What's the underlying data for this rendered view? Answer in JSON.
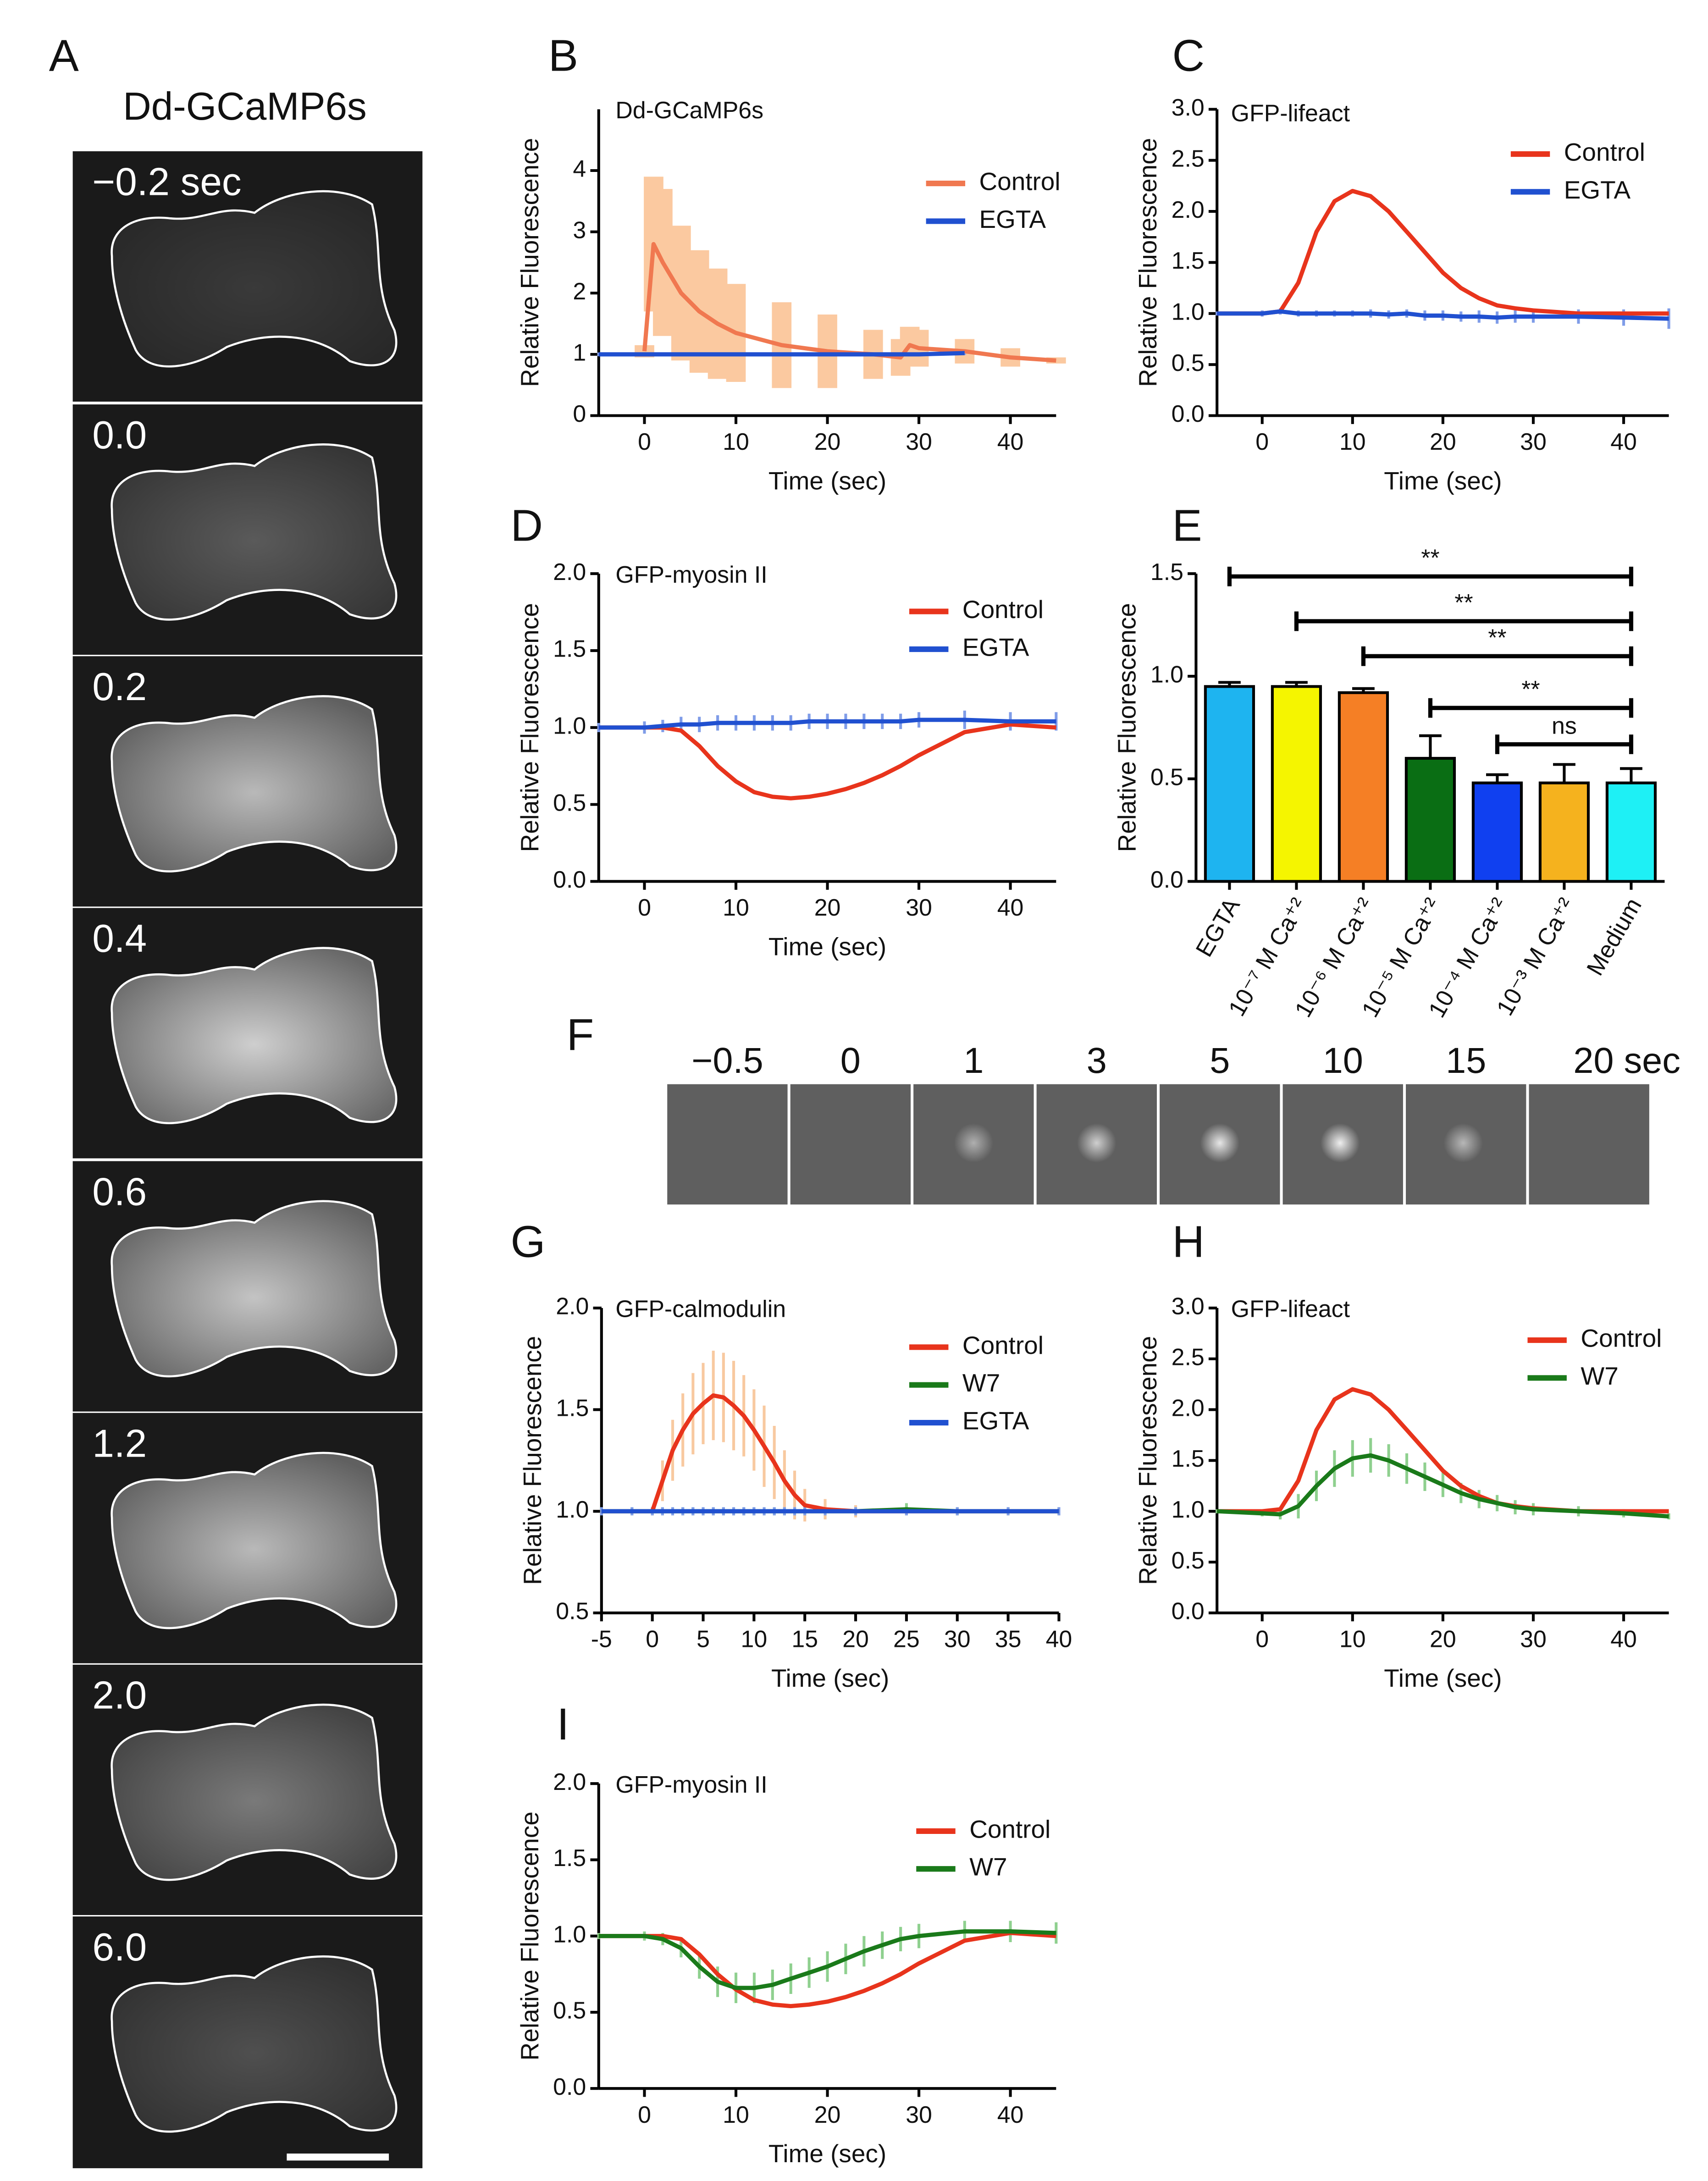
{
  "panel_a": {
    "label": "A",
    "title": "Dd-GCaMP6s",
    "frames": [
      "−0.2 sec",
      "0.0",
      "0.2",
      "0.4",
      "0.6",
      "1.2",
      "2.0",
      "6.0"
    ]
  },
  "panel_f": {
    "label": "F",
    "labels": [
      "−0.5",
      "0",
      "1",
      "3",
      "5",
      "10",
      "15",
      "20 sec"
    ]
  },
  "chart_data": [
    {
      "type": "line",
      "panel": "B",
      "title": "Dd-GCaMP6s",
      "x_label": "Time (sec)",
      "y_label": "Relative Fluorescence",
      "x": [
        -5,
        -1,
        0,
        1,
        2,
        4,
        6,
        8,
        10,
        15,
        20,
        25,
        28,
        29,
        30,
        35,
        40,
        45
      ],
      "series": [
        {
          "name": "Control",
          "color": "#f07850",
          "values": [
            null,
            null,
            1.05,
            2.8,
            2.5,
            2.0,
            1.7,
            1.5,
            1.35,
            1.15,
            1.05,
            1.0,
            0.95,
            1.15,
            1.1,
            1.05,
            0.95,
            0.9
          ],
          "errors": [
            null,
            null,
            0.1,
            1.1,
            1.2,
            1.1,
            1.0,
            0.9,
            0.8,
            0.7,
            0.6,
            0.4,
            0.3,
            0.3,
            0.3,
            0.2,
            0.15,
            0.05
          ],
          "error_color": "#fbc9a0"
        },
        {
          "name": "EGTA",
          "color": "#2050d0",
          "values": [
            1,
            1,
            1,
            1,
            1,
            1,
            1,
            1,
            1,
            1,
            1,
            1,
            1,
            1,
            1,
            1.02,
            null,
            null
          ],
          "errors": [
            0.03,
            0.03,
            0.03,
            0.03,
            0.03,
            0.03,
            0.03,
            0.03,
            0.03,
            0.03,
            0.03,
            0.03,
            0.03,
            0.03,
            0.03,
            0.03,
            null,
            null
          ],
          "error_color": "#8fa8ea"
        }
      ],
      "xlim": [
        -5,
        45
      ],
      "xticks": [
        0,
        10,
        20,
        30,
        40
      ],
      "ylim": [
        0,
        5
      ],
      "yticks": [
        0,
        1,
        2,
        3,
        4
      ]
    },
    {
      "type": "line",
      "panel": "C",
      "title": "GFP-lifeact",
      "x_label": "Time (sec)",
      "y_label": "Relative Fluorescence",
      "x": [
        -5,
        0,
        2,
        4,
        6,
        8,
        10,
        12,
        14,
        16,
        18,
        20,
        22,
        24,
        26,
        28,
        30,
        35,
        40,
        45
      ],
      "series": [
        {
          "name": "Control",
          "color": "#e8341c",
          "values": [
            1,
            1,
            1.02,
            1.3,
            1.8,
            2.1,
            2.2,
            2.15,
            2.0,
            1.8,
            1.6,
            1.4,
            1.25,
            1.15,
            1.08,
            1.05,
            1.03,
            1.0,
            1.0,
            1.0
          ]
        },
        {
          "name": "EGTA",
          "color": "#2050d0",
          "values": [
            1,
            1,
            1.02,
            1.0,
            1.0,
            1,
            1,
            1,
            0.99,
            1,
            0.98,
            0.98,
            0.97,
            0.97,
            0.96,
            0.97,
            0.97,
            0.97,
            0.96,
            0.95
          ],
          "errors": [
            0.02,
            0.03,
            0.03,
            0.03,
            0.03,
            0.03,
            0.03,
            0.04,
            0.04,
            0.04,
            0.05,
            0.05,
            0.05,
            0.06,
            0.06,
            0.06,
            0.06,
            0.07,
            0.08,
            0.1
          ],
          "error_color": "#7f9ce8"
        }
      ],
      "xlim": [
        -5,
        45
      ],
      "xticks": [
        0,
        10,
        20,
        30,
        40
      ],
      "ylim": [
        0,
        3
      ],
      "yticks": [
        {
          "value": 0,
          "label": "0.0"
        },
        0.5,
        {
          "value": 1,
          "label": "1.0"
        },
        1.5,
        {
          "value": 2,
          "label": "2.0"
        },
        2.5,
        {
          "value": 3,
          "label": "3.0"
        }
      ]
    },
    {
      "type": "line",
      "panel": "D",
      "title": "GFP-myosin II",
      "x_label": "Time (sec)",
      "y_label": "Relative Fluorescence",
      "x": [
        -5,
        0,
        2,
        4,
        6,
        8,
        10,
        12,
        14,
        16,
        18,
        20,
        22,
        24,
        26,
        28,
        30,
        35,
        40,
        45
      ],
      "series": [
        {
          "name": "Control",
          "color": "#e8341c",
          "values": [
            1,
            1,
            1,
            0.98,
            0.88,
            0.75,
            0.65,
            0.58,
            0.55,
            0.54,
            0.55,
            0.57,
            0.6,
            0.64,
            0.69,
            0.75,
            0.82,
            0.97,
            1.02,
            1.0
          ]
        },
        {
          "name": "EGTA",
          "color": "#2050d0",
          "values": [
            1,
            1,
            1.01,
            1.02,
            1.02,
            1.03,
            1.03,
            1.03,
            1.03,
            1.03,
            1.04,
            1.04,
            1.04,
            1.04,
            1.04,
            1.04,
            1.05,
            1.05,
            1.04,
            1.04
          ],
          "errors": [
            0.03,
            0.04,
            0.04,
            0.05,
            0.05,
            0.05,
            0.05,
            0.05,
            0.05,
            0.05,
            0.05,
            0.05,
            0.05,
            0.05,
            0.05,
            0.05,
            0.05,
            0.06,
            0.06,
            0.06
          ],
          "error_color": "#7f9ce8"
        }
      ],
      "xlim": [
        -5,
        45
      ],
      "xticks": [
        0,
        10,
        20,
        30,
        40
      ],
      "ylim": [
        0,
        2
      ],
      "yticks": [
        {
          "value": 0,
          "label": "0.0"
        },
        0.5,
        {
          "value": 1,
          "label": "1.0"
        },
        1.5,
        {
          "value": 2,
          "label": "2.0"
        }
      ]
    },
    {
      "type": "bar",
      "panel": "E",
      "y_label": "Relative Fluorescence",
      "categories": [
        "EGTA",
        "10⁻⁷ M Ca⁺²",
        "10⁻⁶ M Ca⁺²",
        "10⁻⁵ M Ca⁺²",
        "10⁻⁴ M Ca⁺²",
        "10⁻³ M Ca⁺²",
        "Medium"
      ],
      "values": [
        0.95,
        0.95,
        0.92,
        0.6,
        0.48,
        0.48,
        0.48
      ],
      "errors": [
        0.02,
        0.02,
        0.02,
        0.11,
        0.04,
        0.09,
        0.07
      ],
      "colors": [
        "#1eb4f0",
        "#f5f500",
        "#f57f25",
        "#0a6e14",
        "#1040f0",
        "#f5b21e",
        "#1ef0f5"
      ],
      "ylim": [
        0,
        1.5
      ],
      "yticks": [
        {
          "value": 0,
          "label": "0.0"
        },
        0.5,
        {
          "value": 1,
          "label": "1.0"
        },
        1.5
      ],
      "brackets": [
        {
          "from": 0,
          "to": 6,
          "label": "**"
        },
        {
          "from": 1,
          "to": 6,
          "label": "**"
        },
        {
          "from": 2,
          "to": 6,
          "label": "**"
        },
        {
          "from": 3,
          "to": 6,
          "label": "**"
        },
        {
          "from": 4,
          "to": 6,
          "label": "ns"
        }
      ]
    },
    {
      "type": "line",
      "panel": "G",
      "title": "GFP-calmodulin",
      "x_label": "Time (sec)",
      "y_label": "Relative Fluorescence",
      "x": [
        -5,
        -2,
        0,
        1,
        2,
        3,
        4,
        5,
        6,
        7,
        8,
        9,
        10,
        11,
        12,
        13,
        14,
        15,
        17,
        20,
        25,
        30,
        35,
        40
      ],
      "series": [
        {
          "name": "Control",
          "color": "#e8341c",
          "values": [
            1,
            1,
            1,
            1.15,
            1.3,
            1.4,
            1.48,
            1.53,
            1.57,
            1.56,
            1.52,
            1.47,
            1.4,
            1.32,
            1.24,
            1.15,
            1.08,
            1.03,
            1.01,
            1.0,
            1.0,
            1.0,
            1.0,
            1.0
          ],
          "errors": [
            0.01,
            0.01,
            0.02,
            0.1,
            0.15,
            0.18,
            0.2,
            0.2,
            0.22,
            0.22,
            0.22,
            0.2,
            0.2,
            0.2,
            0.18,
            0.15,
            0.12,
            0.08,
            0.05,
            0.03,
            0.02,
            0.02,
            0.02,
            0.02
          ],
          "error_color": "#f8c9a0"
        },
        {
          "name": "W7",
          "color": "#1a7a1a",
          "values": [
            1,
            1,
            1,
            1,
            1,
            1,
            1,
            1,
            1,
            1,
            1,
            1,
            1,
            1,
            1,
            1,
            1,
            1,
            1,
            1,
            1.01,
            1.0,
            1.0,
            1.0
          ],
          "errors": [
            0.02,
            0.02,
            0.02,
            0.02,
            0.02,
            0.02,
            0.02,
            0.02,
            0.02,
            0.02,
            0.02,
            0.02,
            0.02,
            0.02,
            0.02,
            0.02,
            0.02,
            0.02,
            0.02,
            0.02,
            0.03,
            0.02,
            0.02,
            0.02
          ],
          "error_color": "#8fd08f"
        },
        {
          "name": "EGTA",
          "color": "#2050d0",
          "values": [
            1,
            1,
            1,
            1,
            1,
            1,
            1,
            1,
            1,
            1,
            1,
            1,
            1,
            1,
            1,
            1,
            1,
            1,
            1,
            1,
            1,
            1,
            1,
            1
          ],
          "errors": [
            0.02,
            0.02,
            0.02,
            0.02,
            0.02,
            0.02,
            0.02,
            0.02,
            0.02,
            0.02,
            0.02,
            0.02,
            0.02,
            0.02,
            0.02,
            0.02,
            0.02,
            0.02,
            0.02,
            0.02,
            0.02,
            0.02,
            0.02,
            0.02
          ],
          "error_color": "#7f9ce8"
        }
      ],
      "xlim": [
        -5,
        40
      ],
      "xticks": [
        -5,
        0,
        5,
        10,
        15,
        20,
        25,
        30,
        35,
        40
      ],
      "ylim": [
        0.5,
        2
      ],
      "yticks": [
        0.5,
        {
          "value": 1,
          "label": "1.0"
        },
        1.5,
        {
          "value": 2,
          "label": "2.0"
        }
      ]
    },
    {
      "type": "line",
      "panel": "H",
      "title": "GFP-lifeact",
      "x_label": "Time (sec)",
      "y_label": "Relative Fluorescence",
      "x": [
        -5,
        0,
        2,
        4,
        6,
        8,
        10,
        12,
        14,
        16,
        18,
        20,
        22,
        24,
        26,
        28,
        30,
        35,
        40,
        45
      ],
      "series": [
        {
          "name": "Control",
          "color": "#e8341c",
          "values": [
            1,
            1,
            1.02,
            1.3,
            1.8,
            2.1,
            2.2,
            2.15,
            2.0,
            1.8,
            1.6,
            1.4,
            1.25,
            1.15,
            1.08,
            1.05,
            1.03,
            1.0,
            1.0,
            1.0
          ]
        },
        {
          "name": "W7",
          "color": "#1a7a1a",
          "values": [
            1,
            0.98,
            0.97,
            1.05,
            1.25,
            1.42,
            1.52,
            1.55,
            1.5,
            1.42,
            1.34,
            1.26,
            1.18,
            1.12,
            1.08,
            1.04,
            1.02,
            1.0,
            0.98,
            0.95
          ],
          "errors": [
            0.02,
            0.03,
            0.05,
            0.12,
            0.15,
            0.18,
            0.18,
            0.17,
            0.16,
            0.15,
            0.14,
            0.12,
            0.1,
            0.09,
            0.08,
            0.07,
            0.06,
            0.05,
            0.04,
            0.03
          ],
          "error_color": "#8fd08f"
        }
      ],
      "xlim": [
        -5,
        45
      ],
      "xticks": [
        0,
        10,
        20,
        30,
        40
      ],
      "ylim": [
        0,
        3
      ],
      "yticks": [
        {
          "value": 0,
          "label": "0.0"
        },
        0.5,
        {
          "value": 1,
          "label": "1.0"
        },
        1.5,
        {
          "value": 2,
          "label": "2.0"
        },
        2.5,
        {
          "value": 3,
          "label": "3.0"
        }
      ]
    },
    {
      "type": "line",
      "panel": "I",
      "title": "GFP-myosin II",
      "x_label": "Time (sec)",
      "y_label": "Relative Fluorescence",
      "x": [
        -5,
        0,
        2,
        4,
        6,
        8,
        10,
        12,
        14,
        16,
        18,
        20,
        22,
        24,
        26,
        28,
        30,
        35,
        40,
        45
      ],
      "series": [
        {
          "name": "Control",
          "color": "#e8341c",
          "values": [
            1,
            1,
            1,
            0.98,
            0.88,
            0.75,
            0.65,
            0.58,
            0.55,
            0.54,
            0.55,
            0.57,
            0.6,
            0.64,
            0.69,
            0.75,
            0.82,
            0.97,
            1.02,
            1.0
          ]
        },
        {
          "name": "W7",
          "color": "#1a7a1a",
          "values": [
            1,
            1,
            0.98,
            0.92,
            0.8,
            0.7,
            0.66,
            0.66,
            0.68,
            0.72,
            0.76,
            0.8,
            0.85,
            0.9,
            0.94,
            0.98,
            1.0,
            1.03,
            1.03,
            1.02
          ],
          "errors": [
            0.02,
            0.03,
            0.04,
            0.06,
            0.08,
            0.1,
            0.1,
            0.1,
            0.1,
            0.1,
            0.1,
            0.1,
            0.1,
            0.1,
            0.09,
            0.08,
            0.08,
            0.07,
            0.07,
            0.07
          ],
          "error_color": "#8fd08f"
        }
      ],
      "xlim": [
        -5,
        45
      ],
      "xticks": [
        0,
        10,
        20,
        30,
        40
      ],
      "ylim": [
        0,
        2
      ],
      "yticks": [
        {
          "value": 0,
          "label": "0.0"
        },
        0.5,
        {
          "value": 1,
          "label": "1.0"
        },
        1.5,
        {
          "value": 2,
          "label": "2.0"
        }
      ]
    }
  ]
}
